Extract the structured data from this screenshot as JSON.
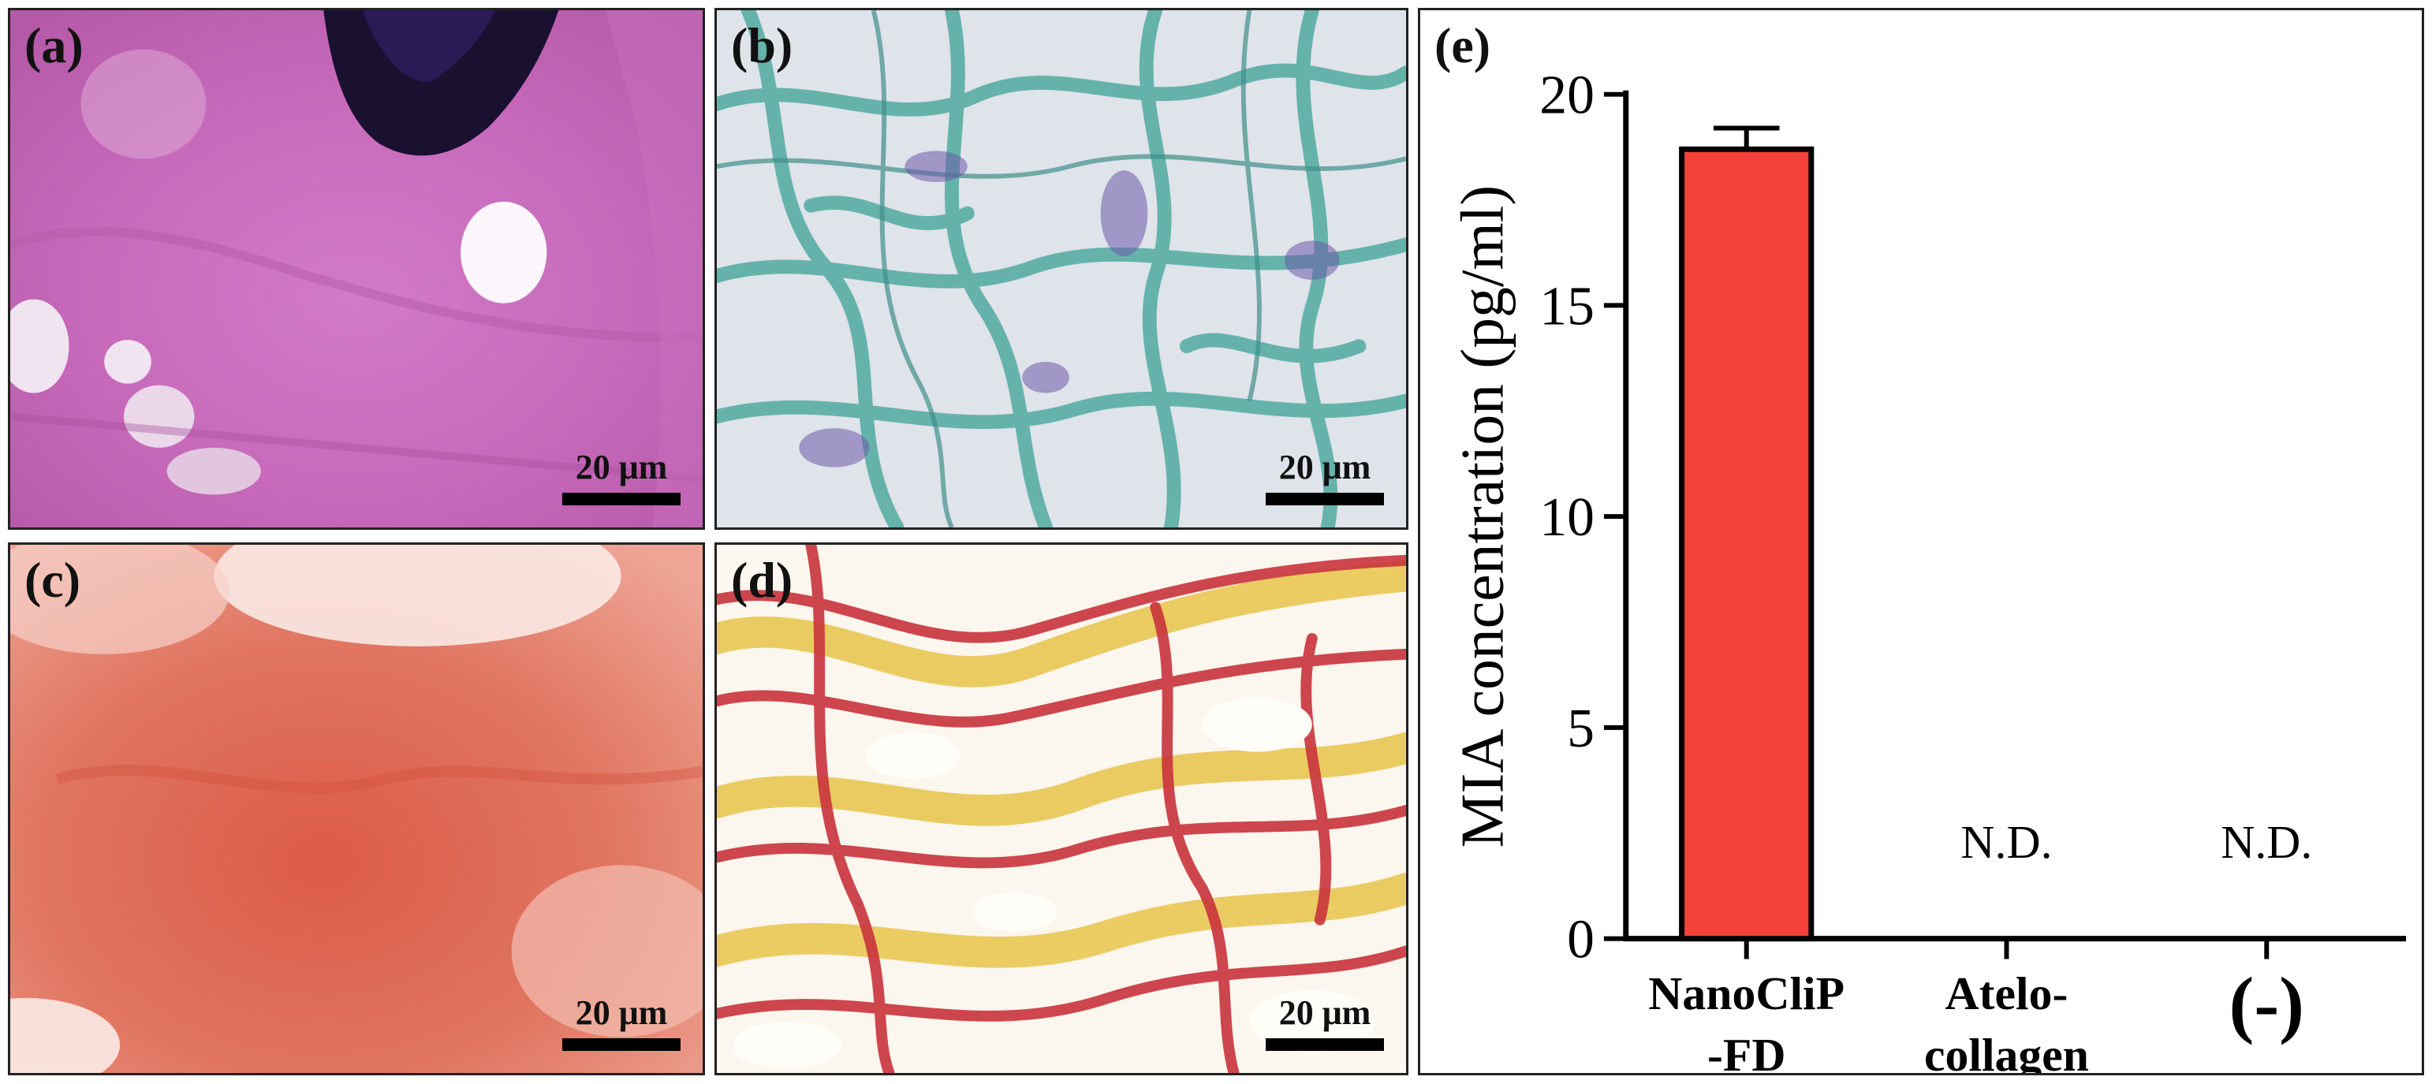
{
  "panels": {
    "a": {
      "label": "(a)",
      "scale": "20 μm"
    },
    "b": {
      "label": "(b)",
      "scale": "20 μm"
    },
    "c": {
      "label": "(c)",
      "scale": "20 μm"
    },
    "d": {
      "label": "(d)",
      "scale": "20 μm"
    },
    "e": {
      "label": "(e)"
    }
  },
  "chart_data": {
    "type": "bar",
    "categories": [
      "NanoCliP-FD",
      "Atelo-collagen",
      "(-)"
    ],
    "category_lines": [
      [
        "NanoCliP",
        "-FD"
      ],
      [
        "Atelo-",
        "collagen"
      ],
      [
        "(-)"
      ]
    ],
    "values": [
      18.7,
      null,
      null
    ],
    "error": [
      0.5,
      null,
      null
    ],
    "annotations": [
      "",
      "N.D.",
      "N.D."
    ],
    "ylabel": "MIA concentration (pg/ml)",
    "ylim": [
      0,
      20
    ],
    "yticks": [
      0,
      5,
      10,
      15,
      20
    ],
    "bar_color": "#f4413a",
    "grid": false
  }
}
